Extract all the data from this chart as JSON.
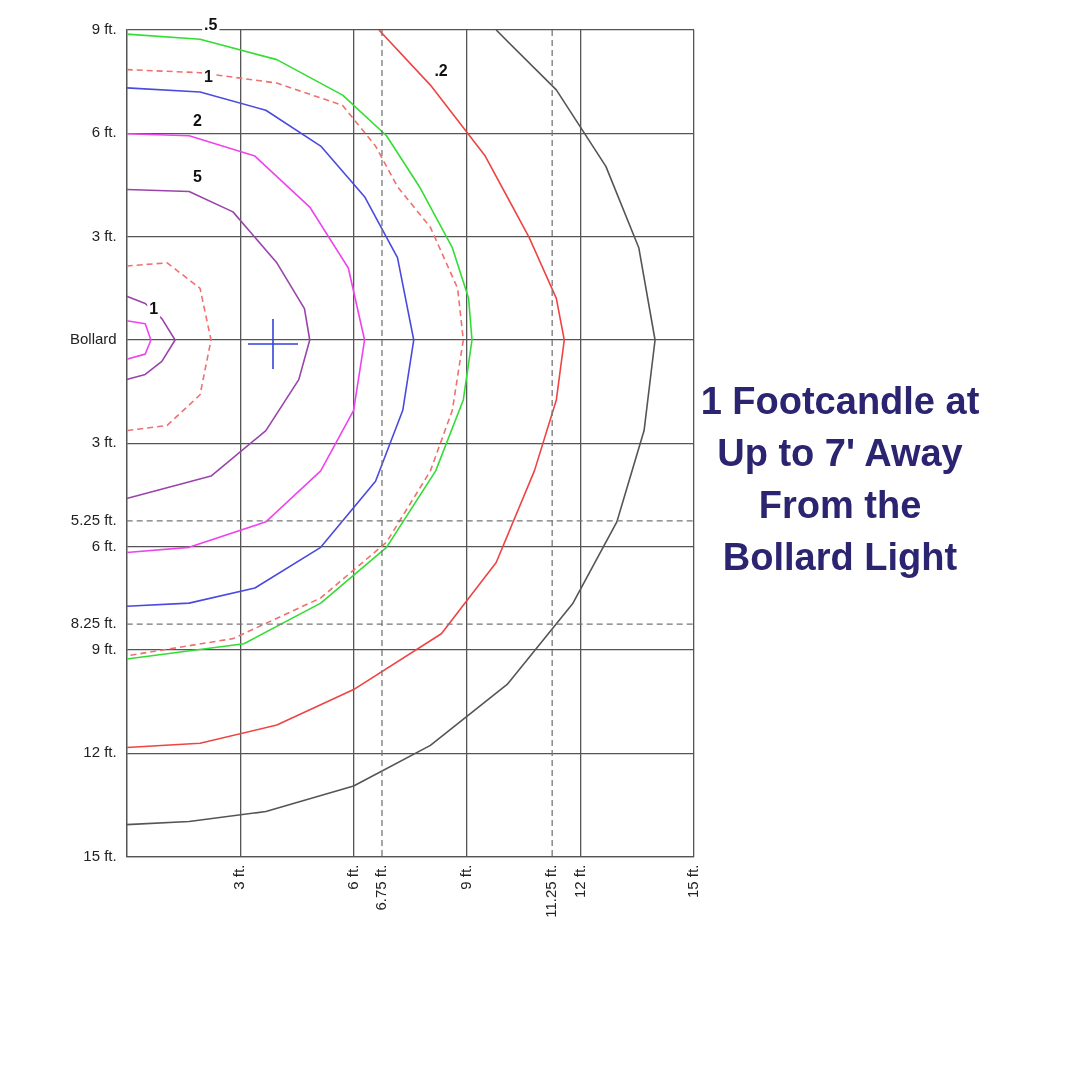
{
  "chart_data": {
    "type": "line",
    "title": "1 Footcandle at Up to 7' Away From the Bollard Light",
    "xlim": [
      0,
      15
    ],
    "ylim": [
      -15,
      9
    ],
    "xticks": [
      {
        "value": 0,
        "label": null
      },
      {
        "value": 3,
        "label": "3 ft."
      },
      {
        "value": 6,
        "label": "6 ft."
      },
      {
        "value": 9,
        "label": "9 ft."
      },
      {
        "value": 12,
        "label": "12 ft."
      },
      {
        "value": 15,
        "label": "15 ft."
      }
    ],
    "yticks": [
      {
        "value": 9,
        "label": "9 ft."
      },
      {
        "value": 6,
        "label": "6 ft."
      },
      {
        "value": 3,
        "label": "3 ft."
      },
      {
        "value": 0,
        "label": "Bollard"
      },
      {
        "value": -3,
        "label": "3 ft."
      },
      {
        "value": -6,
        "label": "6 ft."
      },
      {
        "value": -9,
        "label": "9 ft."
      },
      {
        "value": -12,
        "label": "12 ft."
      },
      {
        "value": -15,
        "label": "15 ft."
      }
    ],
    "grid": true,
    "legend": false,
    "marker": "none",
    "ref_lines": [
      {
        "axis": "y",
        "value": -5.25,
        "label": "5.25 ft.",
        "line_style": "dashed",
        "color": "#777777"
      },
      {
        "axis": "y",
        "value": -8.25,
        "label": "8.25 ft.",
        "line_style": "dashed",
        "color": "#777777"
      },
      {
        "axis": "x",
        "value": 6.75,
        "label": "6.75 ft.",
        "line_style": "dashed",
        "color": "#777777"
      },
      {
        "axis": "x",
        "value": 11.25,
        "label": "11.25 ft.",
        "line_style": "dashed",
        "color": "#777777"
      }
    ],
    "series": [
      {
        "type": "line",
        "color": "#555555",
        "x": [
          9.77,
          11.36,
          12.67,
          13.54,
          13.97,
          13.68,
          12.96,
          11.8,
          10.06,
          8.03,
          6.0,
          3.68,
          1.65,
          0
        ],
        "values": [
          9,
          7.26,
          5.04,
          2.68,
          0,
          -2.63,
          -5.28,
          -7.64,
          -10,
          -11.77,
          -12.95,
          -13.69,
          -13.98,
          -14.07
        ]
      },
      {
        "type": "line",
        "name": ".2",
        "color": "#ee4444",
        "x": [
          6.67,
          8.03,
          9.48,
          10.64,
          11.36,
          11.57,
          11.36,
          10.78,
          9.77,
          8.32,
          6.0,
          3.97,
          1.94,
          0
        ],
        "values": [
          9,
          7.4,
          5.34,
          2.98,
          1.21,
          0,
          -1.74,
          -3.8,
          -6.46,
          -8.53,
          -10.15,
          -11.18,
          -11.71,
          -11.83
        ]
      },
      {
        "type": "line",
        "name": ".5",
        "color": "#33dd33",
        "x": [
          0,
          1.94,
          3.97,
          5.71,
          6.87,
          7.74,
          8.61,
          9.04,
          9.13,
          8.9,
          8.17,
          6.87,
          5.13,
          3.1,
          0
        ],
        "values": [
          8.88,
          8.73,
          8.14,
          7.11,
          5.93,
          4.45,
          2.68,
          1.21,
          0,
          -1.74,
          -3.8,
          -6.02,
          -7.64,
          -8.82,
          -9.26
        ]
      },
      {
        "type": "line",
        "color": "#f07070",
        "line_style": "dashed",
        "x": [
          0,
          1.94,
          3.97,
          5.71,
          6.58,
          7.16,
          8.03,
          8.75,
          8.9,
          8.61,
          8.03,
          6.87,
          5.13,
          2.81,
          0
        ],
        "values": [
          7.85,
          7.76,
          7.46,
          6.81,
          5.63,
          4.45,
          3.27,
          1.5,
          0,
          -2.04,
          -3.8,
          -5.87,
          -7.49,
          -8.67,
          -9.17
        ]
      },
      {
        "type": "line",
        "name": "1",
        "color": "#4a4ae0",
        "x": [
          0,
          1.94,
          3.68,
          5.13,
          6.29,
          7.16,
          7.59,
          7.3,
          6.58,
          5.13,
          3.39,
          1.65,
          0
        ],
        "values": [
          7.32,
          7.2,
          6.67,
          5.63,
          4.16,
          2.39,
          0,
          -2.04,
          -4.1,
          -6.02,
          -7.2,
          -7.64,
          -7.73
        ]
      },
      {
        "type": "line",
        "name": "2",
        "color": "#ee44ee",
        "x": [
          0,
          1.65,
          3.39,
          4.84,
          5.86,
          6.29,
          6.0,
          5.13,
          3.68,
          1.65,
          0
        ],
        "values": [
          5.99,
          5.93,
          5.34,
          3.86,
          2.09,
          0,
          -2.04,
          -3.8,
          -5.28,
          -6.02,
          -6.17
        ]
      },
      {
        "type": "line",
        "name": "5",
        "color": "#9944aa",
        "x": [
          0,
          1.65,
          2.81,
          3.97,
          4.7,
          4.84,
          4.55,
          3.68,
          2.23,
          0
        ],
        "values": [
          4.37,
          4.31,
          3.72,
          2.24,
          0.91,
          0,
          -1.15,
          -2.63,
          -3.95,
          -4.6
        ]
      },
      {
        "type": "line",
        "color": "#f07070",
        "line_style": "dashed",
        "x": [
          0,
          1.07,
          1.94,
          2.23,
          1.94,
          1.07,
          0
        ],
        "values": [
          2.15,
          2.24,
          1.5,
          0,
          -1.59,
          -2.48,
          -2.63
        ]
      },
      {
        "type": "line",
        "color": "#9944aa",
        "x": [
          0,
          0.49,
          0.93,
          1.28,
          0.93,
          0.49,
          0
        ],
        "values": [
          1.27,
          1.06,
          0.62,
          0,
          -0.62,
          -1.0,
          -1.15
        ]
      },
      {
        "type": "line",
        "name": "1",
        "color": "#ee44ee",
        "x": [
          0,
          0.49,
          0.64,
          0.49,
          0
        ],
        "values": [
          0.56,
          0.47,
          0,
          -0.41,
          -0.56
        ]
      }
    ]
  }
}
